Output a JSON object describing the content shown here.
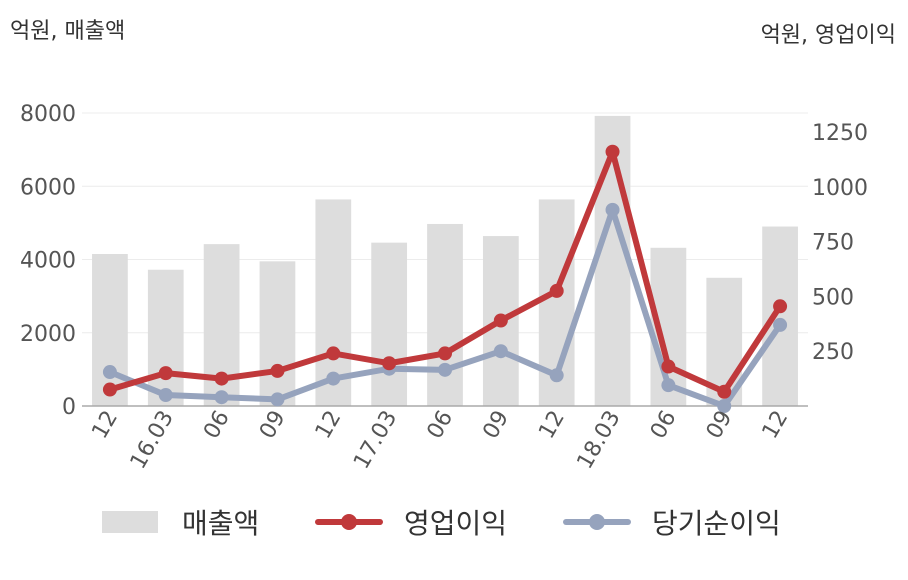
{
  "chart_data": {
    "type": "bar+line",
    "categories": [
      "12",
      "16.03",
      "06",
      "09",
      "12",
      "17.03",
      "06",
      "09",
      "12",
      "18.03",
      "06",
      "09",
      "12"
    ],
    "left_axis": {
      "label": "억원, 매출액",
      "ticks": [
        "0",
        "2000",
        "4000",
        "6000",
        "8000"
      ],
      "ylim": [
        0,
        8000
      ]
    },
    "right_axis": {
      "label": "억원, 영업이익",
      "ticks": [
        "250",
        "500",
        "750",
        "1000",
        "1250"
      ],
      "ylim": [
        0,
        1250
      ]
    },
    "series": [
      {
        "name": "매출액",
        "type": "bar",
        "axis": "left",
        "color": "#dddddd",
        "values": [
          4150,
          3720,
          4420,
          3950,
          5640,
          4460,
          4970,
          4640,
          5640,
          7920,
          4320,
          3500,
          4900
        ]
      },
      {
        "name": "영업이익",
        "type": "line",
        "axis": "right",
        "color": "#c0393b",
        "values": [
          75,
          150,
          125,
          160,
          240,
          195,
          240,
          390,
          525,
          1160,
          180,
          65,
          455
        ]
      },
      {
        "name": "당기순이익",
        "type": "line",
        "axis": "right",
        "color": "#96a3bd",
        "values": [
          155,
          50,
          40,
          30,
          125,
          170,
          165,
          250,
          140,
          895,
          95,
          0,
          370
        ]
      }
    ],
    "grid": true,
    "legend": "bottom"
  }
}
